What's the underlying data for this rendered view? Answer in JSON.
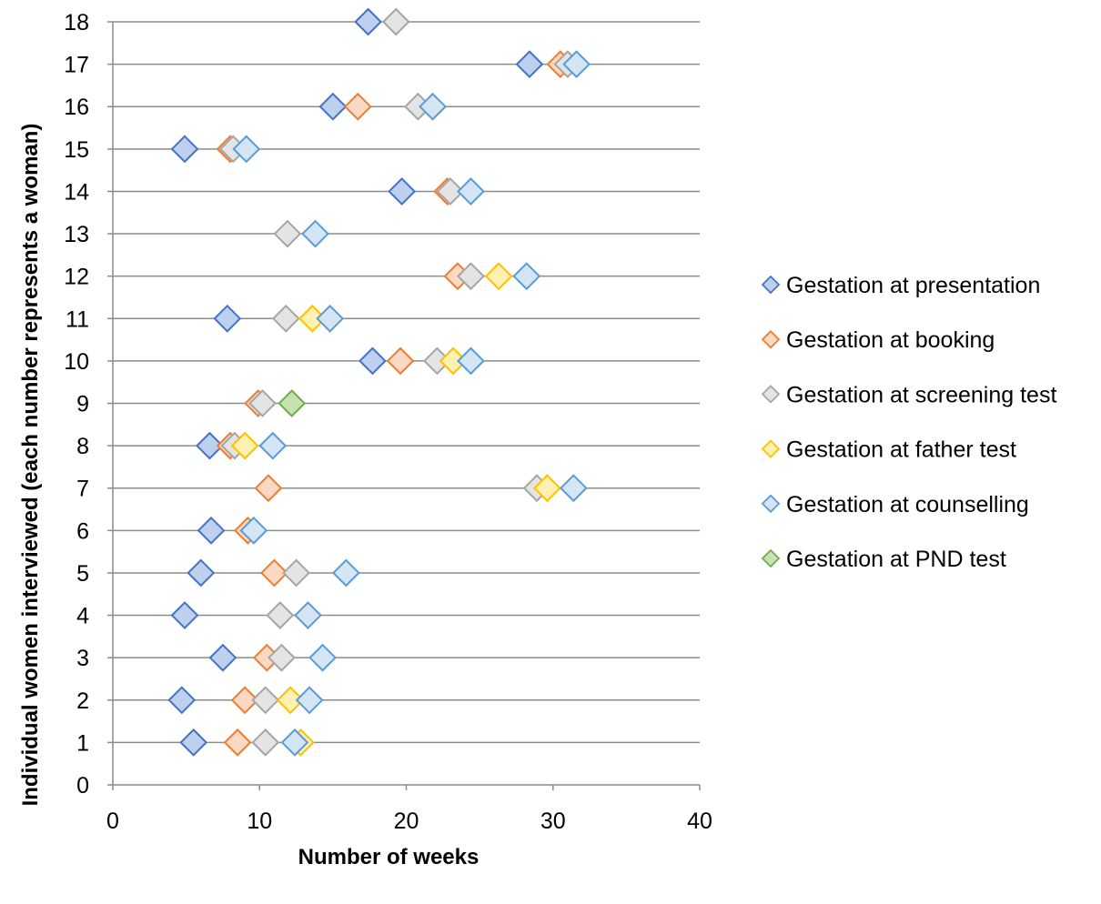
{
  "chart_data": {
    "type": "scatter",
    "title": "",
    "xlabel": "Number of weeks",
    "ylabel": "Individual women interviewed (each number represents a woman)",
    "xlim": [
      0,
      40
    ],
    "ylim": [
      0,
      18
    ],
    "xticks": [
      0,
      10,
      20,
      30,
      40
    ],
    "yticks": [
      0,
      1,
      2,
      3,
      4,
      5,
      6,
      7,
      8,
      9,
      10,
      11,
      12,
      13,
      14,
      15,
      16,
      17,
      18
    ],
    "grid": "horizontal",
    "legend_position": "right",
    "marker": "diamond",
    "series": [
      {
        "name": "Gestation at presentation",
        "stroke": "#4472C4",
        "fill": "#BDD0EE",
        "points": [
          [
            5.5,
            1
          ],
          [
            4.7,
            2
          ],
          [
            7.5,
            3
          ],
          [
            4.9,
            4
          ],
          [
            6.0,
            5
          ],
          [
            6.7,
            6
          ],
          [
            6.6,
            8
          ],
          [
            17.7,
            10
          ],
          [
            7.8,
            11
          ],
          [
            19.7,
            14
          ],
          [
            4.9,
            15
          ],
          [
            15.0,
            16
          ],
          [
            28.4,
            17
          ],
          [
            17.4,
            18
          ]
        ]
      },
      {
        "name": "Gestation at booking",
        "stroke": "#ED7D31",
        "fill": "#FBD9C3",
        "points": [
          [
            8.5,
            1
          ],
          [
            9.0,
            2
          ],
          [
            10.5,
            3
          ],
          [
            11.0,
            5
          ],
          [
            9.2,
            6
          ],
          [
            10.6,
            7
          ],
          [
            8.0,
            8
          ],
          [
            9.9,
            9
          ],
          [
            19.6,
            10
          ],
          [
            23.5,
            12
          ],
          [
            22.8,
            14
          ],
          [
            8.0,
            15
          ],
          [
            16.7,
            16
          ],
          [
            30.5,
            17
          ]
        ]
      },
      {
        "name": "Gestation at screening test",
        "stroke": "#A5A5A5",
        "fill": "#E4E4E4",
        "points": [
          [
            10.4,
            1
          ],
          [
            10.4,
            2
          ],
          [
            11.5,
            3
          ],
          [
            11.4,
            4
          ],
          [
            12.5,
            5
          ],
          [
            28.9,
            7
          ],
          [
            8.3,
            8
          ],
          [
            10.2,
            9
          ],
          [
            22.1,
            10
          ],
          [
            11.8,
            11
          ],
          [
            24.4,
            12
          ],
          [
            11.9,
            13
          ],
          [
            23.0,
            14
          ],
          [
            8.2,
            15
          ],
          [
            20.8,
            16
          ],
          [
            31.0,
            17
          ],
          [
            19.3,
            18
          ]
        ]
      },
      {
        "name": "Gestation at father test",
        "stroke": "#FFC000",
        "fill": "#FFF0B3",
        "points": [
          [
            12.8,
            1
          ],
          [
            12.1,
            2
          ],
          [
            29.6,
            7
          ],
          [
            9.0,
            8
          ],
          [
            23.2,
            10
          ],
          [
            13.6,
            11
          ],
          [
            26.3,
            12
          ]
        ]
      },
      {
        "name": "Gestation at counselling",
        "stroke": "#5B9BD5",
        "fill": "#D4E5F6",
        "points": [
          [
            12.4,
            1
          ],
          [
            13.4,
            2
          ],
          [
            14.3,
            3
          ],
          [
            13.3,
            4
          ],
          [
            15.9,
            5
          ],
          [
            9.6,
            6
          ],
          [
            31.4,
            7
          ],
          [
            10.9,
            8
          ],
          [
            24.4,
            10
          ],
          [
            14.8,
            11
          ],
          [
            28.2,
            12
          ],
          [
            13.8,
            13
          ],
          [
            24.4,
            14
          ],
          [
            9.1,
            15
          ],
          [
            21.8,
            16
          ],
          [
            31.6,
            17
          ]
        ]
      },
      {
        "name": "Gestation at PND test",
        "stroke": "#70AD47",
        "fill": "#C6E2B3",
        "points": [
          [
            12.2,
            9
          ]
        ]
      }
    ]
  }
}
